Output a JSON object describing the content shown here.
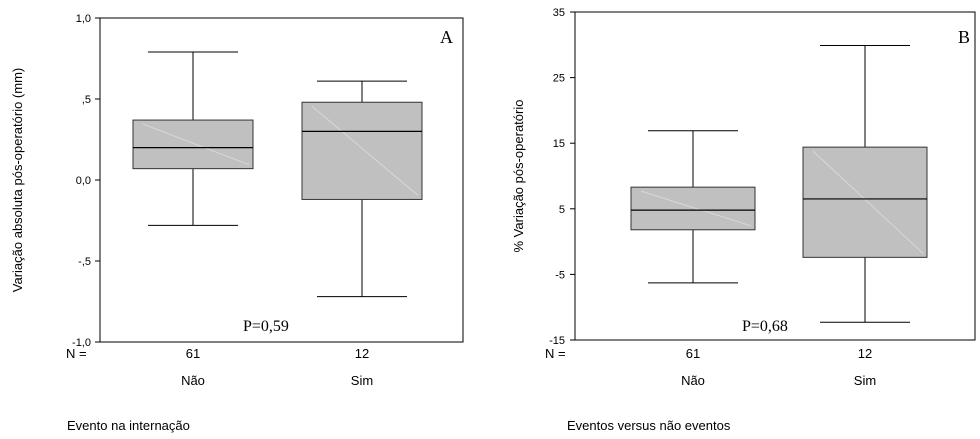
{
  "chart_data": [
    {
      "type": "boxplot",
      "panel_label": "A",
      "ylabel": "Variação absoluta pós-operatório (mm)",
      "xlabel": "Evento na internação",
      "yticks": [
        "1,0",
        ",5",
        "0,0",
        "-,5",
        "-1,0"
      ],
      "ytick_values": [
        1.0,
        0.5,
        0.0,
        -0.5,
        -1.0
      ],
      "ylim": [
        -1.0,
        1.0
      ],
      "n_label": "N =",
      "annotation": "P=0,59",
      "groups": [
        {
          "name": "Não",
          "n": "61",
          "min": -0.28,
          "q1": 0.07,
          "median": 0.2,
          "q3": 0.37,
          "max": 0.79
        },
        {
          "name": "Sim",
          "n": "12",
          "min": -0.72,
          "q1": -0.12,
          "median": 0.3,
          "q3": 0.48,
          "max": 0.61
        }
      ]
    },
    {
      "type": "boxplot",
      "panel_label": "B",
      "ylabel": "% Variação pós-operatório",
      "xlabel": "Eventos versus não eventos",
      "yticks": [
        "35",
        "25",
        "15",
        "5",
        "-5",
        "-15"
      ],
      "ytick_values": [
        35,
        25,
        15,
        5,
        -5,
        -15
      ],
      "ylim": [
        -15,
        35
      ],
      "n_label": "N =",
      "annotation": "P=0,68",
      "groups": [
        {
          "name": "Não",
          "n": "61",
          "min": -6.3,
          "q1": 1.8,
          "median": 4.8,
          "q3": 8.3,
          "max": 16.9
        },
        {
          "name": "Sim",
          "n": "12",
          "min": -12.3,
          "q1": -2.4,
          "median": 6.5,
          "q3": 14.4,
          "max": 29.9
        }
      ]
    }
  ],
  "colors": {
    "box_fill": "#c0c0c0",
    "line": "#000000",
    "box_stroke": "#333333"
  }
}
